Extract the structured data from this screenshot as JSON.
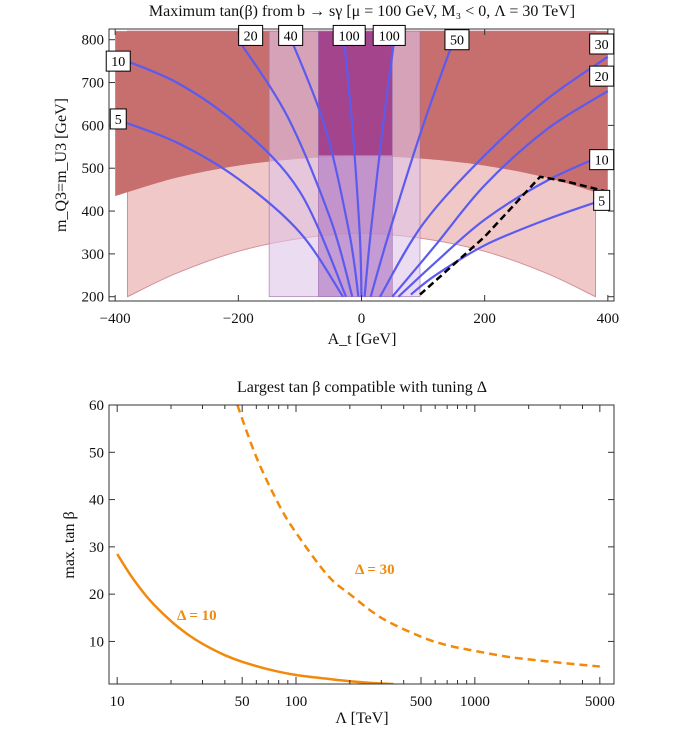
{
  "chart_data": [
    {
      "type": "line",
      "title": "Maximum tan(β) from b → sγ [μ = 100 GeV, M₃ < 0, Λ = 30 TeV]",
      "xlabel": "A_t [GeV]",
      "ylabel": "m_Q3=m_U3 [GeV]",
      "xlim": [
        -410,
        410
      ],
      "ylim": [
        190,
        825
      ],
      "xticks": [
        -400,
        -200,
        0,
        200,
        400
      ],
      "yticks": [
        200,
        300,
        400,
        500,
        600,
        700,
        800
      ],
      "colors": {
        "excluded_dark": "#c76e6e",
        "excluded_light": "#f0c8c8",
        "band_light": "#e0c4e8",
        "band_mid": "#b37fc4",
        "band_dark": "#9b2e7a",
        "contour": "#5b5bf0",
        "boundary": "#000000"
      },
      "regions": [
        {
          "name": "dark-excluded",
          "y_lower_at_x": [
            [
              -400,
              435
            ],
            [
              -300,
              478
            ],
            [
              -200,
              506
            ],
            [
              -100,
              522
            ],
            [
              0,
              528
            ],
            [
              100,
              522
            ],
            [
              200,
              506
            ],
            [
              300,
              478
            ],
            [
              400,
              435
            ]
          ],
          "y_upper": 820
        },
        {
          "name": "light-excluded",
          "y_lower_at_x": [
            [
              -380,
              200
            ],
            [
              -300,
              255
            ],
            [
              -200,
              306
            ],
            [
              -100,
              336
            ],
            [
              0,
              348
            ],
            [
              100,
              336
            ],
            [
              200,
              306
            ],
            [
              300,
              255
            ],
            [
              380,
              200
            ]
          ],
          "y_upper": 820
        },
        {
          "name": "band-wide",
          "x_range": [
            -150,
            95
          ],
          "y_range": [
            200,
            820
          ]
        },
        {
          "name": "band-mid",
          "x_range": [
            -70,
            50
          ],
          "y_range": [
            200,
            820
          ]
        },
        {
          "name": "band-core",
          "x_range": [
            -70,
            50
          ],
          "y_range": [
            530,
            820
          ]
        }
      ],
      "series": [
        {
          "name": "5",
          "points": [
            [
              -400,
              615
            ],
            [
              -300,
              560
            ],
            [
              -200,
              475
            ],
            [
              -100,
              350
            ],
            [
              -30,
              200
            ]
          ]
        },
        {
          "name": "10",
          "points": [
            [
              -400,
              760
            ],
            [
              -300,
              700
            ],
            [
              -200,
              600
            ],
            [
              -100,
              445
            ],
            [
              -25,
              200
            ]
          ]
        },
        {
          "name": "20",
          "points": [
            [
              -200,
              800
            ],
            [
              -120,
              620
            ],
            [
              -50,
              380
            ],
            [
              -15,
              200
            ]
          ]
        },
        {
          "name": "40",
          "points": [
            [
              -120,
              820
            ],
            [
              -60,
              600
            ],
            [
              -20,
              350
            ],
            [
              -5,
              200
            ]
          ]
        },
        {
          "name": "100",
          "points": [
            [
              -30,
              820
            ],
            [
              -15,
              600
            ],
            [
              -3,
              350
            ],
            [
              0,
              200
            ]
          ]
        },
        {
          "name": "100",
          "points": [
            [
              55,
              820
            ],
            [
              35,
              600
            ],
            [
              15,
              350
            ],
            [
              5,
              200
            ]
          ]
        },
        {
          "name": "50",
          "points": [
            [
              155,
              820
            ],
            [
              100,
              600
            ],
            [
              45,
              350
            ],
            [
              15,
              200
            ]
          ]
        },
        {
          "name": "30",
          "points": [
            [
              400,
              760
            ],
            [
              300,
              660
            ],
            [
              200,
              530
            ],
            [
              100,
              370
            ],
            [
              30,
              200
            ]
          ]
        },
        {
          "name": "20",
          "points": [
            [
              400,
              680
            ],
            [
              300,
              590
            ],
            [
              200,
              460
            ],
            [
              120,
              320
            ],
            [
              50,
              200
            ]
          ]
        },
        {
          "name": "10",
          "points": [
            [
              400,
              535
            ],
            [
              300,
              470
            ],
            [
              200,
              380
            ],
            [
              120,
              280
            ],
            [
              60,
              200
            ]
          ]
        },
        {
          "name": "5",
          "points": [
            [
              400,
              430
            ],
            [
              300,
              380
            ],
            [
              200,
              320
            ],
            [
              120,
              250
            ],
            [
              80,
              205
            ]
          ]
        }
      ],
      "boundary": {
        "points": [
          [
            95,
            205
          ],
          [
            200,
            340
          ],
          [
            290,
            480
          ],
          [
            330,
            470
          ],
          [
            400,
            445
          ]
        ]
      },
      "contour_labels": [
        "10",
        "5",
        "20",
        "40",
        "100",
        "100",
        "50",
        "30",
        "20",
        "10",
        "5"
      ]
    },
    {
      "type": "line",
      "title": "Largest tan β compatible with tuning Δ",
      "xlabel": "Λ [TeV]",
      "ylabel": "max. tan β",
      "xscale": "log",
      "xlim": [
        9,
        6000
      ],
      "ylim": [
        1,
        60
      ],
      "xticks": [
        10,
        50,
        100,
        500,
        1000,
        5000
      ],
      "yticks": [
        10,
        20,
        30,
        40,
        50,
        60
      ],
      "color": "#f2890a",
      "series": [
        {
          "name": "Δ = 10",
          "style": "solid",
          "x": [
            10,
            12,
            15,
            20,
            25,
            30,
            40,
            50,
            70,
            100,
            150,
            200,
            300,
            350
          ],
          "y": [
            28.5,
            23.8,
            19.0,
            14.3,
            11.4,
            9.5,
            7.1,
            5.7,
            4.1,
            2.9,
            2.1,
            1.6,
            1.1,
            1.0
          ]
        },
        {
          "name": "Δ = 30",
          "style": "dashed",
          "x": [
            47,
            60,
            80,
            100,
            150,
            200,
            300,
            500,
            700,
            1000,
            1500,
            2000,
            3000,
            5000
          ],
          "y": [
            60.0,
            49.0,
            39.0,
            33.0,
            24.0,
            20.0,
            15.0,
            11.0,
            9.2,
            8.0,
            6.8,
            6.2,
            5.5,
            4.7
          ]
        }
      ],
      "annotations": [
        "Δ = 30",
        "Δ = 10"
      ]
    }
  ]
}
